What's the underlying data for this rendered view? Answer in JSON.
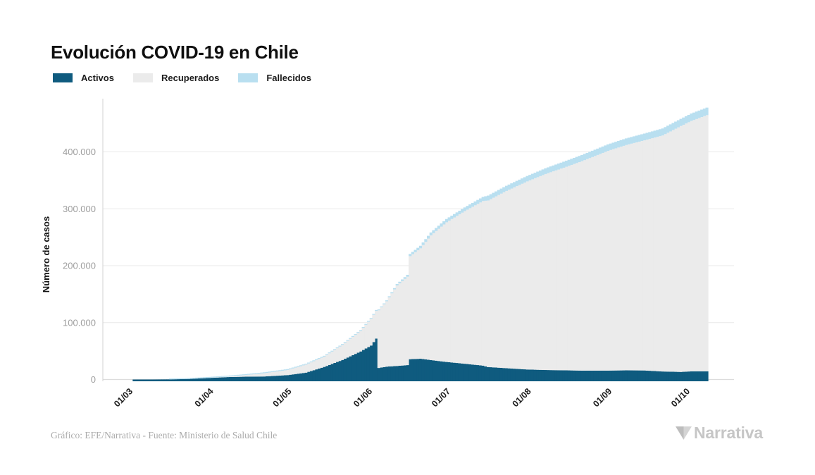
{
  "page": {
    "title": "Evolución COVID-19 en Chile"
  },
  "legend": {
    "items": [
      {
        "label": "Activos",
        "color": "#0f5b7f"
      },
      {
        "label": "Recuperados",
        "color": "#ebebeb"
      },
      {
        "label": "Fallecidos",
        "color": "#b9dff0"
      }
    ]
  },
  "footer": {
    "source": "Gráfico: EFE/Narrativa - Fuente: Ministerio de Salud Chile",
    "brand": "Narrativa"
  },
  "chart_data": {
    "type": "bar",
    "stacked": true,
    "title": "Evolución COVID-19 en Chile",
    "xlabel": "",
    "ylabel": "Número de casos",
    "ylim": [
      0,
      493000
    ],
    "grid": true,
    "legend_position": "top-left",
    "yticks": [
      0,
      100000,
      200000,
      300000,
      400000
    ],
    "ytick_labels": [
      "0",
      "100.000",
      "200.000",
      "300.000",
      "400.000"
    ],
    "xtick_labels": [
      "01/03",
      "01/04",
      "01/05",
      "01/06",
      "01/07",
      "01/08",
      "01/09",
      "01/10"
    ],
    "series": [
      {
        "key": "activos",
        "name": "Activos",
        "color": "#0f5b7f"
      },
      {
        "key": "recuperados",
        "name": "Recuperados",
        "color": "#ebebeb"
      },
      {
        "key": "fallecidos",
        "name": "Fallecidos",
        "color": "#b9dff0"
      }
    ],
    "points": [
      {
        "date": "03/03",
        "activos": 1,
        "recuperados": 0,
        "fallecidos": 0
      },
      {
        "date": "10/03",
        "activos": 17,
        "recuperados": 0,
        "fallecidos": 0
      },
      {
        "date": "17/03",
        "activos": 230,
        "recuperados": 10,
        "fallecidos": 1
      },
      {
        "date": "24/03",
        "activos": 900,
        "recuperados": 60,
        "fallecidos": 3
      },
      {
        "date": "01/04",
        "activos": 2780,
        "recuperados": 234,
        "fallecidos": 16
      },
      {
        "date": "08/04",
        "activos": 4250,
        "recuperados": 898,
        "fallecidos": 48
      },
      {
        "date": "15/04",
        "activos": 4980,
        "recuperados": 2937,
        "fallecidos": 92
      },
      {
        "date": "22/04",
        "activos": 5310,
        "recuperados": 5804,
        "fallecidos": 147
      },
      {
        "date": "01/05",
        "activos": 7760,
        "recuperados": 9018,
        "fallecidos": 234
      },
      {
        "date": "08/05",
        "activos": 12070,
        "recuperados": 14125,
        "fallecidos": 312
      },
      {
        "date": "15/05",
        "activos": 22110,
        "recuperados": 18014,
        "fallecidos": 421
      },
      {
        "date": "22/05",
        "activos": 34350,
        "recuperados": 26546,
        "fallecidos": 589
      },
      {
        "date": "29/05",
        "activos": 49300,
        "recuperados": 36115,
        "fallecidos": 890
      },
      {
        "date": "02/06",
        "activos": 59700,
        "recuperados": 47000,
        "fallecidos": 1113
      },
      {
        "date": "04/06",
        "activos": 72000,
        "recuperados": 48600,
        "fallecidos": 1275
      },
      {
        "date": "05/06",
        "activos": 20300,
        "recuperados": 101300,
        "fallecidos": 1356
      },
      {
        "date": "08/06",
        "activos": 22600,
        "recuperados": 114900,
        "fallecidos": 1637
      },
      {
        "date": "12/06",
        "activos": 23800,
        "recuperados": 141500,
        "fallecidos": 2475
      },
      {
        "date": "16/06",
        "activos": 25300,
        "recuperados": 155300,
        "fallecidos": 3362
      },
      {
        "date": "17/06",
        "activos": 35700,
        "recuperados": 181100,
        "fallecidos": 3841
      },
      {
        "date": "21/06",
        "activos": 36500,
        "recuperados": 194000,
        "fallecidos": 4502
      },
      {
        "date": "25/06",
        "activos": 34200,
        "recuperados": 219100,
        "fallecidos": 5068
      },
      {
        "date": "01/07",
        "activos": 30850,
        "recuperados": 245450,
        "fallecidos": 5753
      },
      {
        "date": "08/07",
        "activos": 27700,
        "recuperados": 268300,
        "fallecidos": 6384
      },
      {
        "date": "15/07",
        "activos": 24400,
        "recuperados": 289200,
        "fallecidos": 7290
      },
      {
        "date": "17/07",
        "activos": 21900,
        "recuperados": 292700,
        "fallecidos": 8547
      },
      {
        "date": "24/07",
        "activos": 19900,
        "recuperados": 311500,
        "fallecidos": 9020
      },
      {
        "date": "01/08",
        "activos": 17600,
        "recuperados": 330510,
        "fallecidos": 9533
      },
      {
        "date": "08/08",
        "activos": 16700,
        "recuperados": 344380,
        "fallecidos": 10011
      },
      {
        "date": "15/08",
        "activos": 16200,
        "recuperados": 356000,
        "fallecidos": 10546
      },
      {
        "date": "22/08",
        "activos": 15640,
        "recuperados": 368000,
        "fallecidos": 10916
      },
      {
        "date": "01/09",
        "activos": 15700,
        "recuperados": 386130,
        "fallecidos": 11321
      },
      {
        "date": "08/09",
        "activos": 16100,
        "recuperados": 396000,
        "fallecidos": 11592
      },
      {
        "date": "15/09",
        "activos": 15900,
        "recuperados": 404400,
        "fallecidos": 11895
      },
      {
        "date": "22/09",
        "activos": 14100,
        "recuperados": 414750,
        "fallecidos": 12298
      },
      {
        "date": "29/09",
        "activos": 13300,
        "recuperados": 432150,
        "fallecidos": 12591
      },
      {
        "date": "03/10",
        "activos": 14350,
        "recuperados": 440000,
        "fallecidos": 12979
      },
      {
        "date": "09/10",
        "activos": 14440,
        "recuperados": 450150,
        "fallecidos": 13220
      }
    ]
  }
}
